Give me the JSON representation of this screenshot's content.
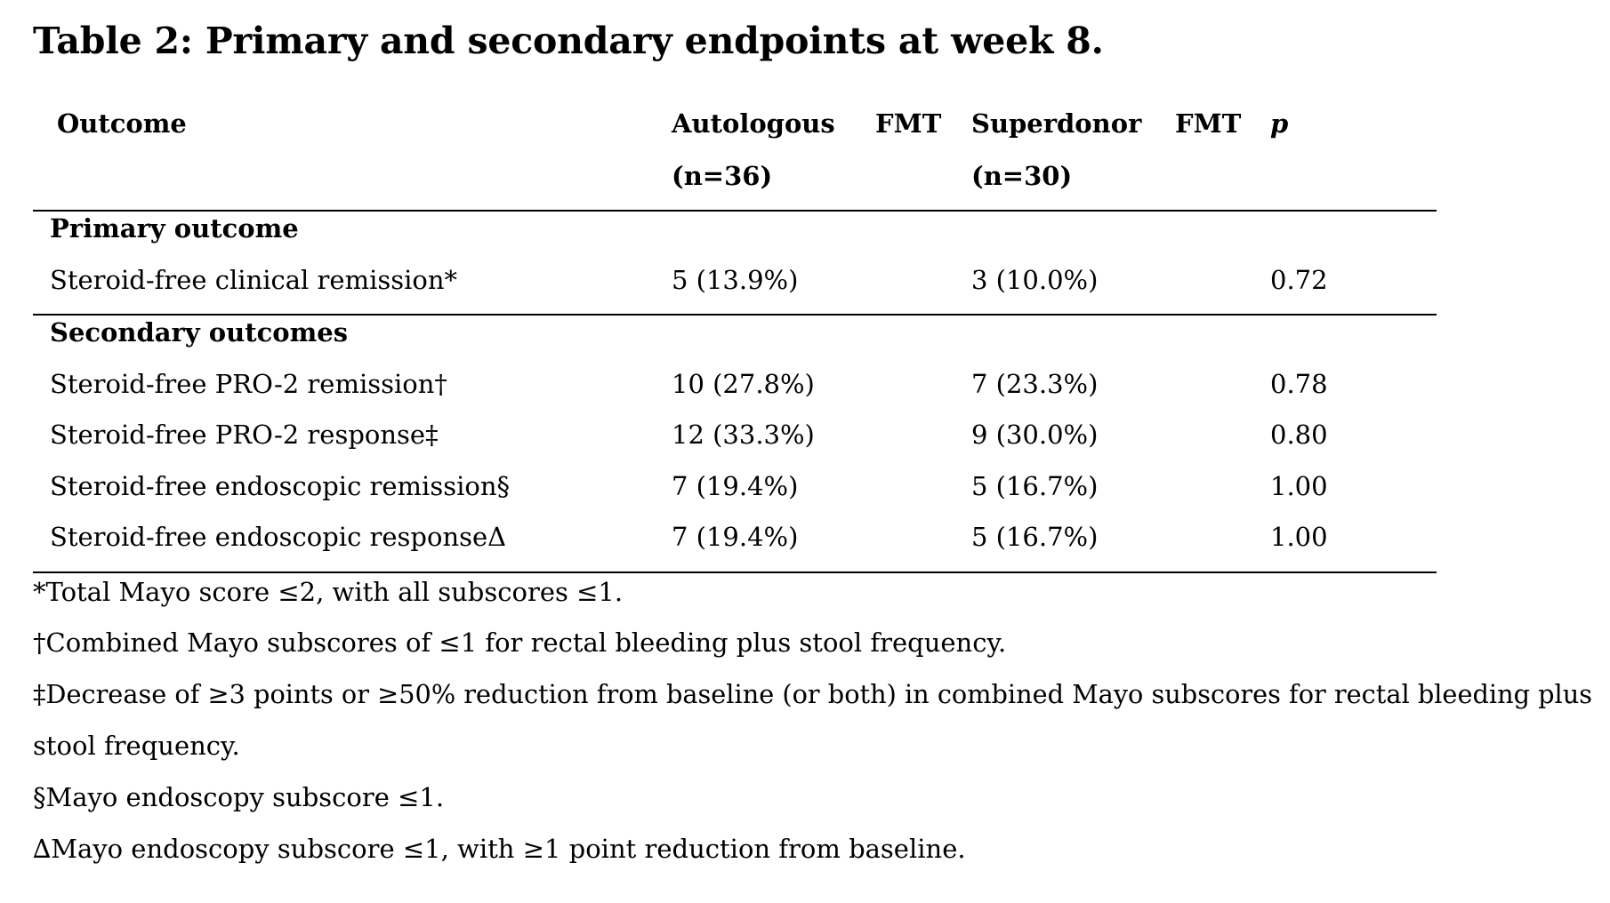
{
  "title": "Table 2: Primary and secondary endpoints at week 8.",
  "columns": {
    "outcome": "Outcome",
    "autologous_line1_a": "Autologous",
    "autologous_line1_b": "FMT",
    "autologous_line2": "(n=36)",
    "superdonor_line1_a": "Superdonor",
    "superdonor_line1_b": "FMT",
    "superdonor_line2": "(n=30)",
    "p": "p"
  },
  "sections": [
    {
      "heading": "Primary outcome",
      "rows": [
        {
          "outcome": "Steroid-free clinical remission*",
          "autologous": "5 (13.9%)",
          "superdonor": "3 (10.0%)",
          "p": "0.72"
        }
      ]
    },
    {
      "heading": "Secondary outcomes",
      "rows": [
        {
          "outcome": "Steroid-free PRO-2 remission†",
          "autologous": "10 (27.8%)",
          "superdonor": "7 (23.3%)",
          "p": "0.78"
        },
        {
          "outcome": "Steroid-free PRO-2 response‡",
          "autologous": "12 (33.3%)",
          "superdonor": "9 (30.0%)",
          "p": "0.80"
        },
        {
          "outcome": "Steroid-free endoscopic remission§",
          "autologous": "7 (19.4%)",
          "superdonor": "5 (16.7%)",
          "p": "1.00"
        },
        {
          "outcome": "Steroid-free endoscopic responseΔ",
          "autologous": "7 (19.4%)",
          "superdonor": "5 (16.7%)",
          "p": "1.00"
        }
      ]
    }
  ],
  "footnotes": [
    "*Total Mayo score ≤2, with all subscores ≤1.",
    "†Combined Mayo subscores of ≤1 for rectal bleeding plus stool frequency.",
    "‡Decrease of ≥3 points or ≥50% reduction from baseline (or both) in combined Mayo subscores for rectal bleeding plus",
    "stool frequency.",
    "§Mayo endoscopy subscore ≤1.",
    "∆Mayo endoscopy subscore ≤1, with ≥1 point reduction from baseline."
  ]
}
